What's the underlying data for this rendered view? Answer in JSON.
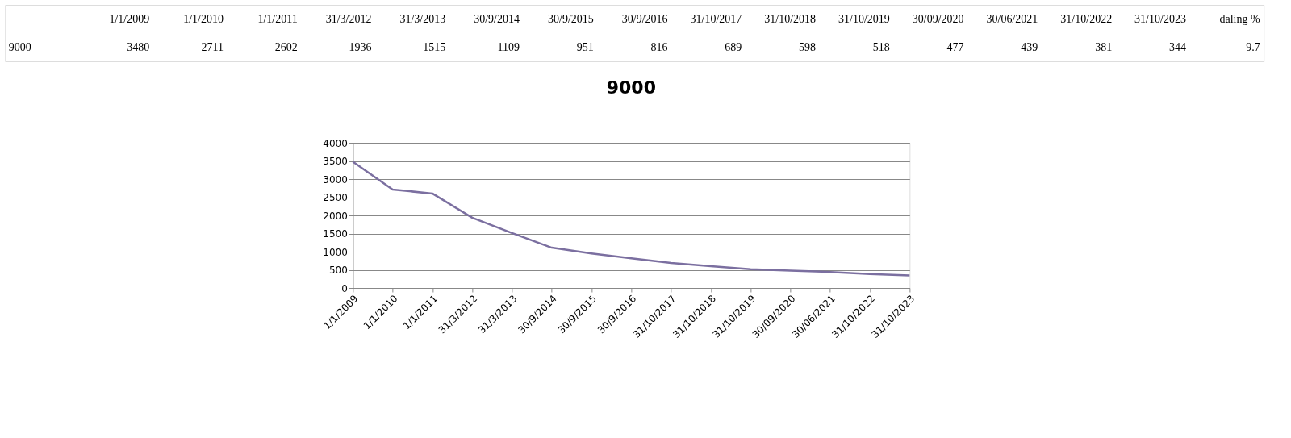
{
  "chart_data": [
    {
      "type": "other",
      "categories": [
        "1/1/2009",
        "1/1/2010",
        "1/1/2011",
        "31/3/2012",
        "31/3/2013",
        "30/9/2014",
        "30/9/2015",
        "30/9/2016",
        "31/10/2017",
        "31/10/2018",
        "31/10/2019",
        "30/09/2020",
        "30/06/2021",
        "31/10/2022",
        "31/10/2023"
      ],
      "series": [
        {
          "name": "9000",
          "values": [
            3480,
            2711,
            2602,
            1936,
            1515,
            1109,
            951,
            816,
            689,
            598,
            518,
            477,
            439,
            381,
            344
          ],
          "value_labels": [
            "3480",
            "2711",
            "2602",
            "1936",
            "1515",
            "1109",
            "951",
            "816",
            "689",
            "598",
            "518",
            "477",
            "439",
            "381",
            "344"
          ]
        }
      ],
      "data_labels": true,
      "annotations": [
        "daling %",
        "9.7"
      ]
    },
    {
      "type": "line",
      "title": "9000",
      "categories": [
        "1/1/2009",
        "1/1/2010",
        "1/1/2011",
        "31/3/2012",
        "31/3/2013",
        "30/9/2014",
        "30/9/2015",
        "30/9/2016",
        "31/10/2017",
        "31/10/2018",
        "31/10/2019",
        "30/09/2020",
        "30/06/2021",
        "31/10/2022",
        "31/10/2023"
      ],
      "series": [
        {
          "color": "#7b6fa0",
          "values": [
            3480,
            2711,
            2602,
            1936,
            1515,
            1109,
            951,
            816,
            689,
            598,
            518,
            477,
            439,
            381,
            344
          ]
        }
      ],
      "ylim": [
        0,
        4000
      ],
      "yticks": [
        0,
        500,
        1000,
        1500,
        2000,
        2500,
        3000,
        3500,
        4000
      ],
      "grid": "y",
      "legend": false,
      "marker": "none",
      "line_style": "solid"
    }
  ]
}
